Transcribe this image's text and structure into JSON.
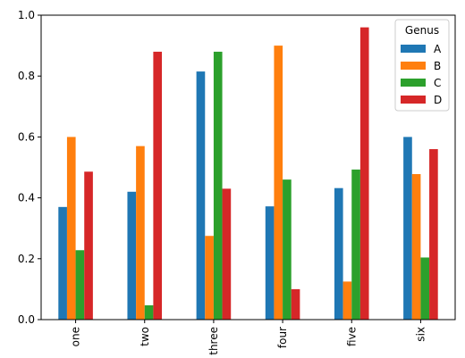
{
  "chart_data": {
    "type": "bar",
    "categories": [
      "one",
      "two",
      "three",
      "four",
      "five",
      "six"
    ],
    "series": [
      {
        "name": "A",
        "color": "#1f77b4",
        "values": [
          0.37,
          0.42,
          0.815,
          0.372,
          0.432,
          0.6
        ]
      },
      {
        "name": "B",
        "color": "#ff7f0e",
        "values": [
          0.6,
          0.57,
          0.275,
          0.9,
          0.125,
          0.478
        ]
      },
      {
        "name": "C",
        "color": "#2ca02c",
        "values": [
          0.228,
          0.047,
          0.88,
          0.46,
          0.493,
          0.204
        ]
      },
      {
        "name": "D",
        "color": "#d62728",
        "values": [
          0.486,
          0.88,
          0.43,
          0.1,
          0.96,
          0.56
        ]
      }
    ],
    "yticks": [
      "0.0",
      "0.2",
      "0.4",
      "0.6",
      "0.8",
      "1.0"
    ],
    "ylim": [
      0,
      1.0
    ],
    "legend_title": "Genus",
    "legend_position": "top-right",
    "grid": false
  }
}
